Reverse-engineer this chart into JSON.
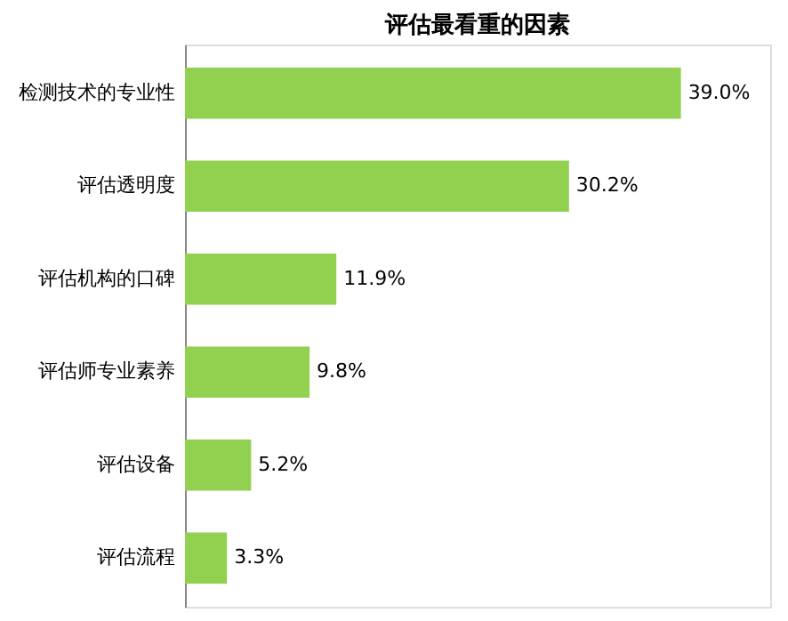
{
  "chart_data": {
    "type": "bar",
    "orientation": "horizontal",
    "title": "评估最看重的因素",
    "categories": [
      "检测技术的专业性",
      "评估透明度",
      "评估机构的口碑",
      "评估师专业素养",
      "评估设备",
      "评估流程"
    ],
    "values": [
      39.0,
      30.2,
      11.9,
      9.8,
      5.2,
      3.3
    ],
    "value_labels": [
      "39.0%",
      "30.2%",
      "11.9%",
      "9.8%",
      "5.2%",
      "3.3%"
    ],
    "color": "#92d050",
    "grid": false
  }
}
